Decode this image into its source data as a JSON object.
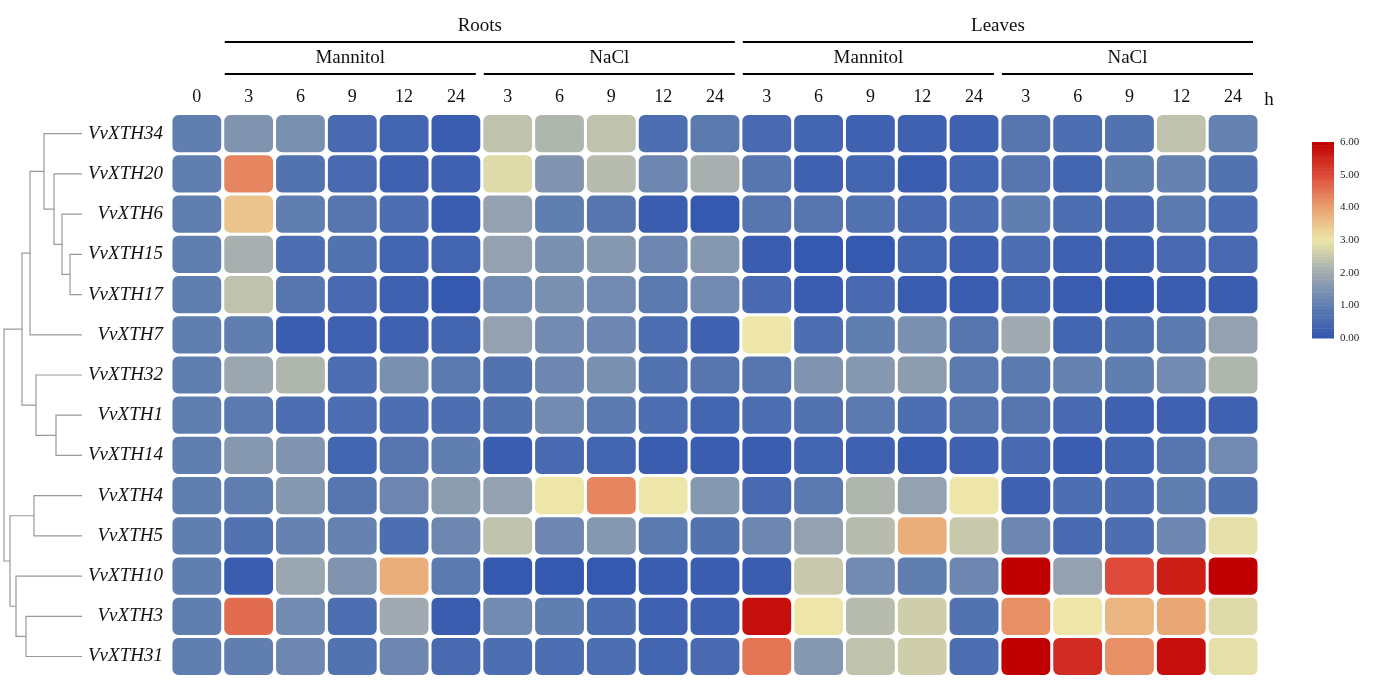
{
  "chart_data": {
    "type": "heatmap",
    "categories": [
      "0",
      "3",
      "6",
      "9",
      "12",
      "24",
      "3",
      "6",
      "9",
      "12",
      "24",
      "3",
      "6",
      "9",
      "12",
      "24",
      "3",
      "6",
      "9",
      "12",
      "24"
    ],
    "y_categories": [
      "VvXTH34",
      "VvXTH20",
      "VvXTH6",
      "VvXTH15",
      "VvXTH17",
      "VvXTH7",
      "VvXTH32",
      "VvXTH1",
      "VvXTH14",
      "VvXTH4",
      "VvXTH5",
      "VvXTH10",
      "VvXTH3",
      "VvXTH31"
    ],
    "cells": [
      [
        1.0,
        1.5,
        1.4,
        0.5,
        0.4,
        0.2,
        2.4,
        2.2,
        2.4,
        0.6,
        0.9,
        0.5,
        0.4,
        0.3,
        0.3,
        0.3,
        0.8,
        0.6,
        0.7,
        2.4,
        1.1
      ],
      [
        1.0,
        4.3,
        0.7,
        0.5,
        0.3,
        0.3,
        2.8,
        1.5,
        2.3,
        1.2,
        2.1,
        0.8,
        0.3,
        0.4,
        0.2,
        0.4,
        0.8,
        0.4,
        1.0,
        1.1,
        0.7
      ],
      [
        1.0,
        3.5,
        1.0,
        0.8,
        0.6,
        0.2,
        1.8,
        1.0,
        0.8,
        0.2,
        0.1,
        0.8,
        0.8,
        0.7,
        0.5,
        0.6,
        1.0,
        0.6,
        0.5,
        0.9,
        0.6
      ],
      [
        1.0,
        2.1,
        0.6,
        0.7,
        0.4,
        0.4,
        1.8,
        1.4,
        1.6,
        1.2,
        1.6,
        0.2,
        0.1,
        0.1,
        0.4,
        0.3,
        0.6,
        0.3,
        0.3,
        0.5,
        0.5
      ],
      [
        1.0,
        2.4,
        0.8,
        0.5,
        0.3,
        0.1,
        1.3,
        1.4,
        1.3,
        0.9,
        1.3,
        0.5,
        0.2,
        0.5,
        0.2,
        0.2,
        0.4,
        0.2,
        0.1,
        0.2,
        0.2
      ],
      [
        1.0,
        1.0,
        0.2,
        0.3,
        0.3,
        0.4,
        1.8,
        1.3,
        1.2,
        0.6,
        0.3,
        3.0,
        0.6,
        1.0,
        1.4,
        0.8,
        2.0,
        0.4,
        0.7,
        0.9,
        1.8
      ],
      [
        1.0,
        1.9,
        2.2,
        0.6,
        1.4,
        0.9,
        0.7,
        1.2,
        1.4,
        0.7,
        0.8,
        0.8,
        1.5,
        1.6,
        1.7,
        0.9,
        0.9,
        1.1,
        1.0,
        1.3,
        2.2
      ],
      [
        1.0,
        0.9,
        0.6,
        0.6,
        0.6,
        0.6,
        0.7,
        1.3,
        0.9,
        0.6,
        0.4,
        0.6,
        0.7,
        0.9,
        0.6,
        0.8,
        0.8,
        0.5,
        0.3,
        0.3,
        0.3
      ],
      [
        1.0,
        1.6,
        1.5,
        0.4,
        0.8,
        1.0,
        0.2,
        0.5,
        0.4,
        0.2,
        0.2,
        0.2,
        0.4,
        0.3,
        0.2,
        0.3,
        0.5,
        0.2,
        0.4,
        0.8,
        1.3
      ],
      [
        1.0,
        1.0,
        1.6,
        0.8,
        1.2,
        1.7,
        1.8,
        3.0,
        4.3,
        3.0,
        1.6,
        0.5,
        0.9,
        2.2,
        1.8,
        3.0,
        0.3,
        0.6,
        0.6,
        1.0,
        0.7
      ],
      [
        1.0,
        0.7,
        1.1,
        1.1,
        0.6,
        1.2,
        2.4,
        1.2,
        1.6,
        0.9,
        0.7,
        1.2,
        1.8,
        2.3,
        3.8,
        2.5,
        1.2,
        0.5,
        0.6,
        1.2,
        2.9
      ],
      [
        1.0,
        0.2,
        1.9,
        1.5,
        3.8,
        0.9,
        0.1,
        0.1,
        0.1,
        0.2,
        0.2,
        0.2,
        2.5,
        1.3,
        1.0,
        1.2,
        6.0,
        1.8,
        5.0,
        5.6,
        6.0
      ],
      [
        1.0,
        4.6,
        1.3,
        0.6,
        2.0,
        0.2,
        1.3,
        1.0,
        0.6,
        0.3,
        0.3,
        5.8,
        3.0,
        2.3,
        2.6,
        0.7,
        4.2,
        3.0,
        3.7,
        3.9,
        2.8
      ],
      [
        1.0,
        1.0,
        1.2,
        0.7,
        1.2,
        0.5,
        0.6,
        0.6,
        0.6,
        0.4,
        0.5,
        4.5,
        1.6,
        2.4,
        2.6,
        0.6,
        6.0,
        5.4,
        4.2,
        5.8,
        2.9
      ]
    ],
    "clim": [
      0,
      6
    ],
    "cticks": [
      {
        "value": 0,
        "label": "0.00"
      },
      {
        "value": 1,
        "label": "1.00"
      },
      {
        "value": 2,
        "label": "2.00"
      },
      {
        "value": 3,
        "label": "3.00"
      },
      {
        "value": 4,
        "label": "4.00"
      },
      {
        "value": 5,
        "label": "5.00"
      },
      {
        "value": 6,
        "label": "6.00"
      }
    ],
    "annotations": [
      "Roots",
      "Leaves",
      "Mannitol",
      "NaCl",
      "Mannitol",
      "NaCl",
      "h"
    ]
  }
}
